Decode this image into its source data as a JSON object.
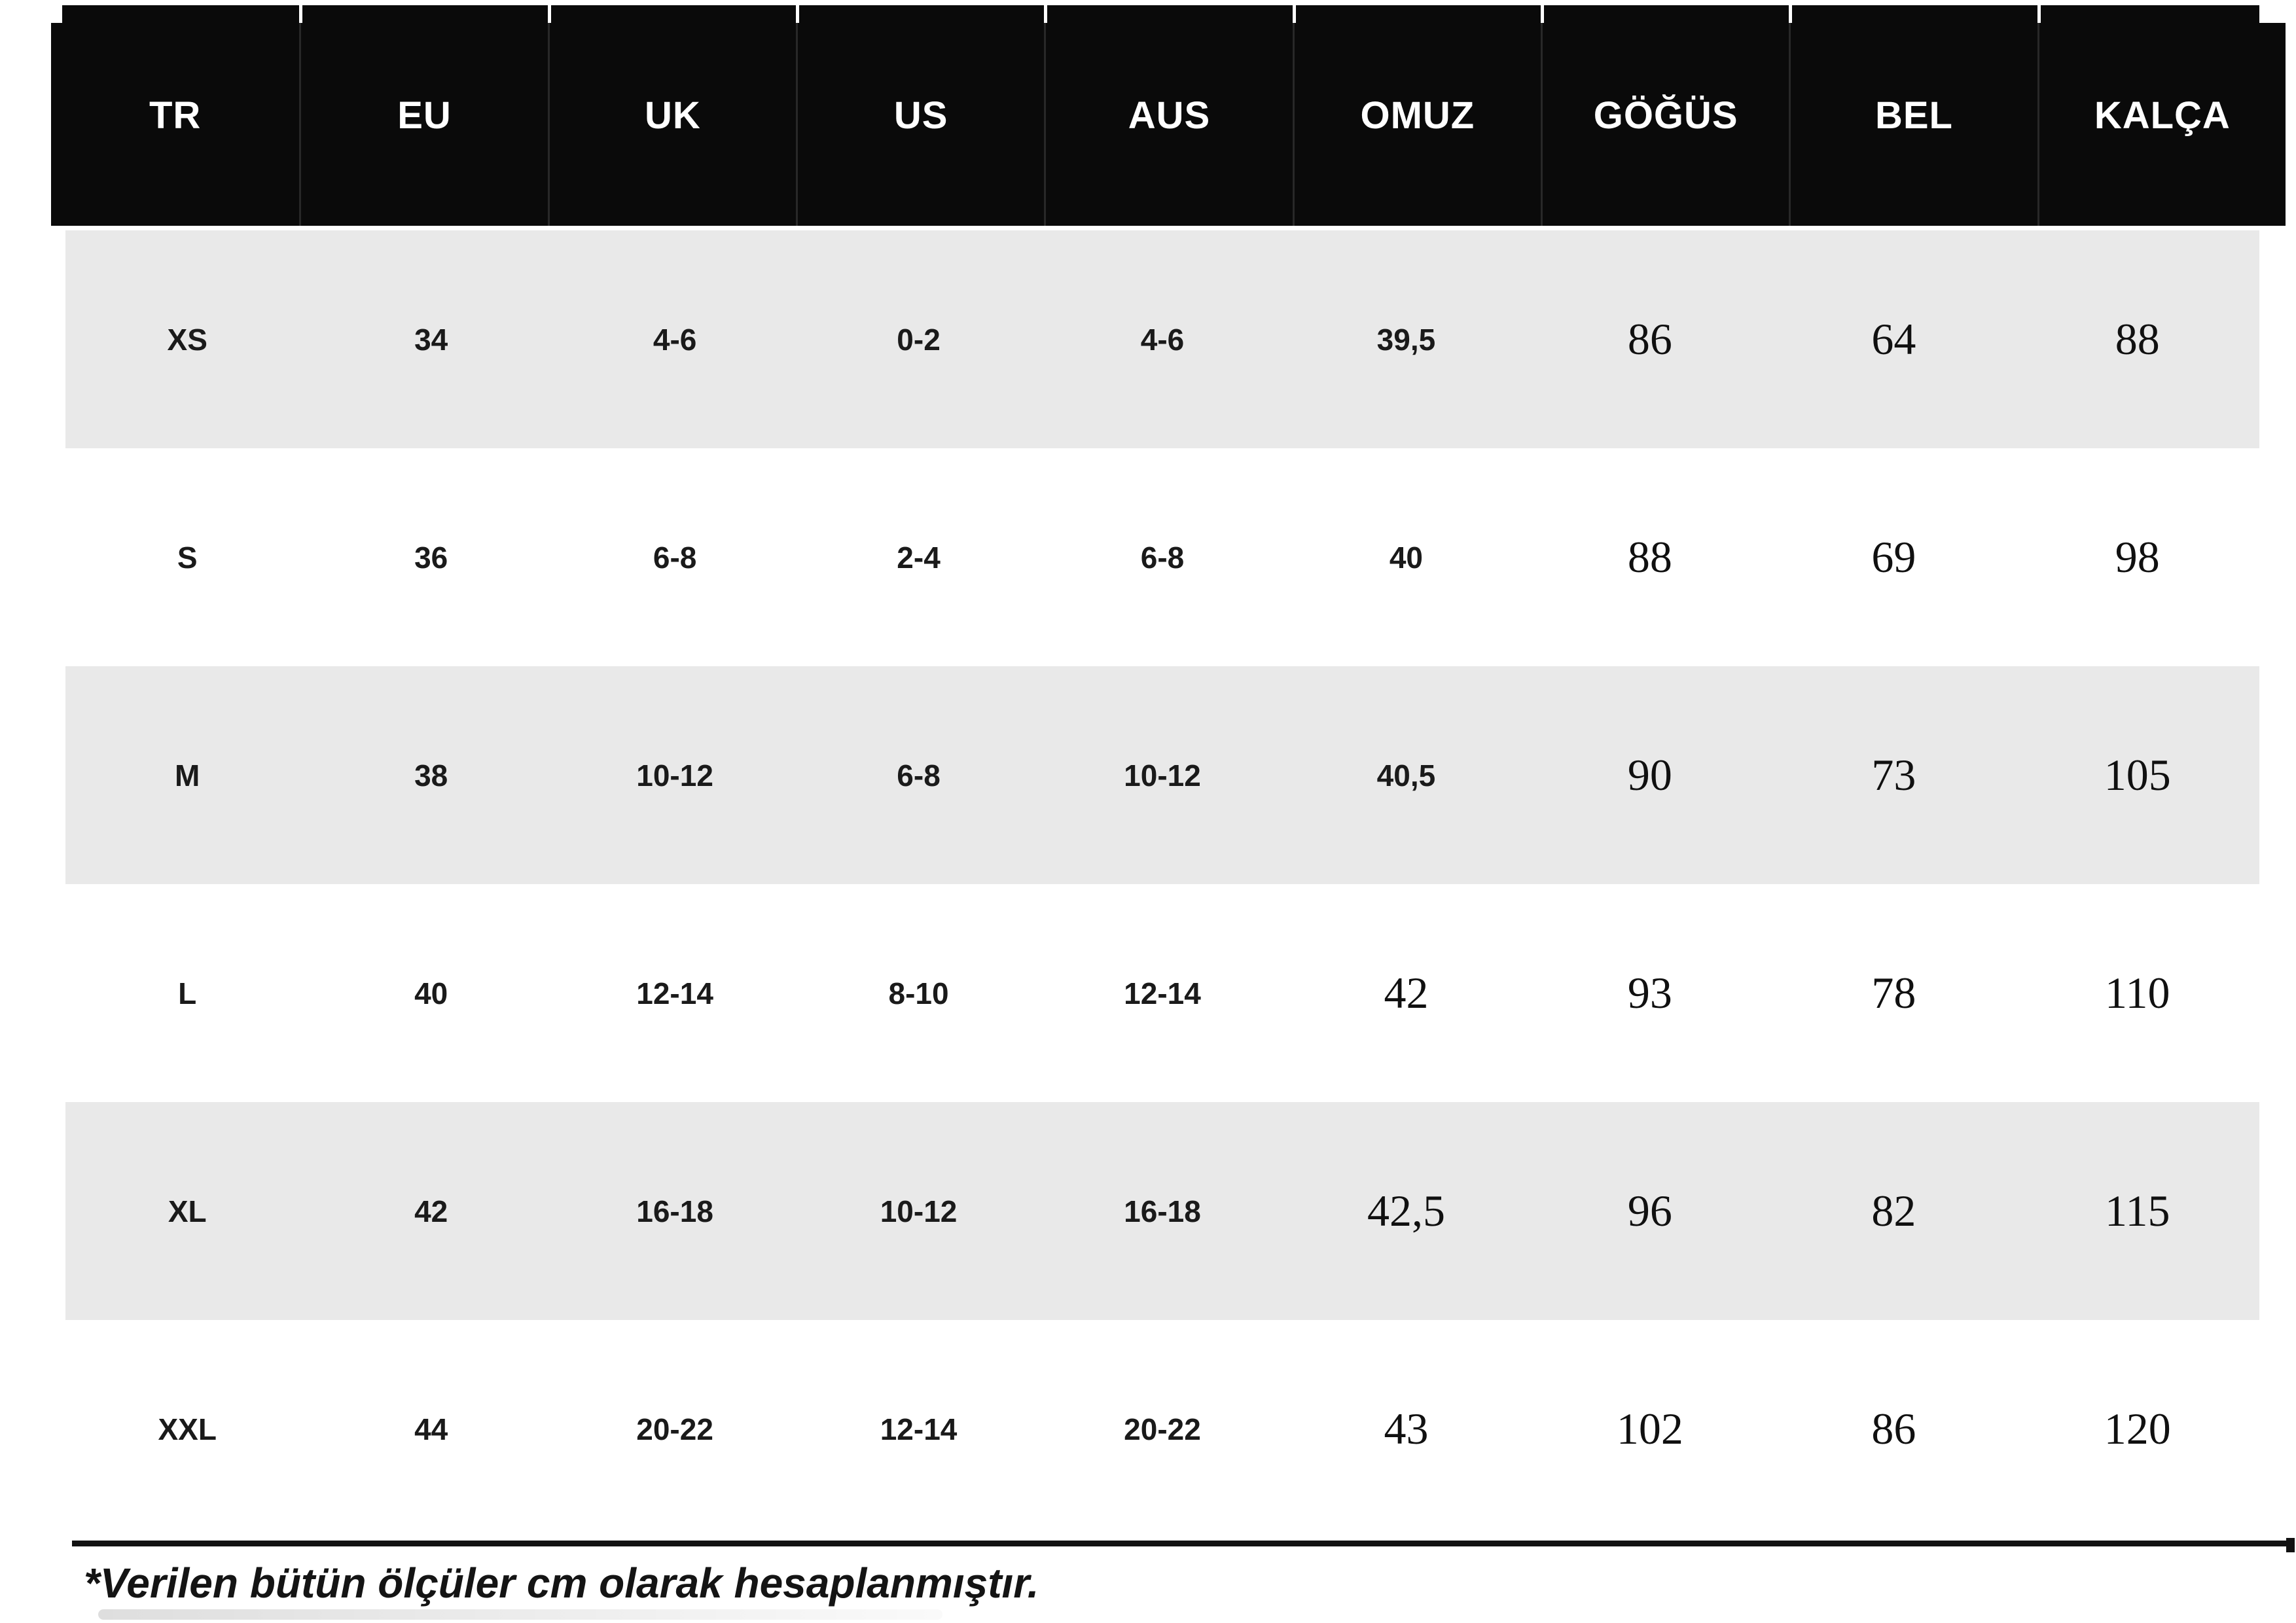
{
  "table": {
    "columns": [
      "TR",
      "EU",
      "UK",
      "US",
      "AUS",
      "OMUZ",
      "GÖĞÜS",
      "BEL",
      "KALÇA"
    ],
    "rows": [
      [
        "XS",
        "34",
        "4-6",
        "0-2",
        "4-6",
        "39,5",
        "86",
        "64",
        "88"
      ],
      [
        "S",
        "36",
        "6-8",
        "2-4",
        "6-8",
        "40",
        "88",
        "69",
        "98"
      ],
      [
        "M",
        "38",
        "10-12",
        "6-8",
        "10-12",
        "40,5",
        "90",
        "73",
        "105"
      ],
      [
        "L",
        "40",
        "12-14",
        "8-10",
        "12-14",
        "42",
        "93",
        "78",
        "110"
      ],
      [
        "XL",
        "42",
        "16-18",
        "10-12",
        "16-18",
        "42,5",
        "96",
        "82",
        "115"
      ],
      [
        "XXL",
        "44",
        "20-22",
        "12-14",
        "20-22",
        "43",
        "102",
        "86",
        "120"
      ]
    ],
    "footnote": "*Verilen bütün ölçüler cm olarak hesaplanmıştır."
  },
  "style": {
    "header_bg": "#0a0a0a",
    "header_text": "#ffffff",
    "row_alt_gray": "#e9e9e9"
  }
}
